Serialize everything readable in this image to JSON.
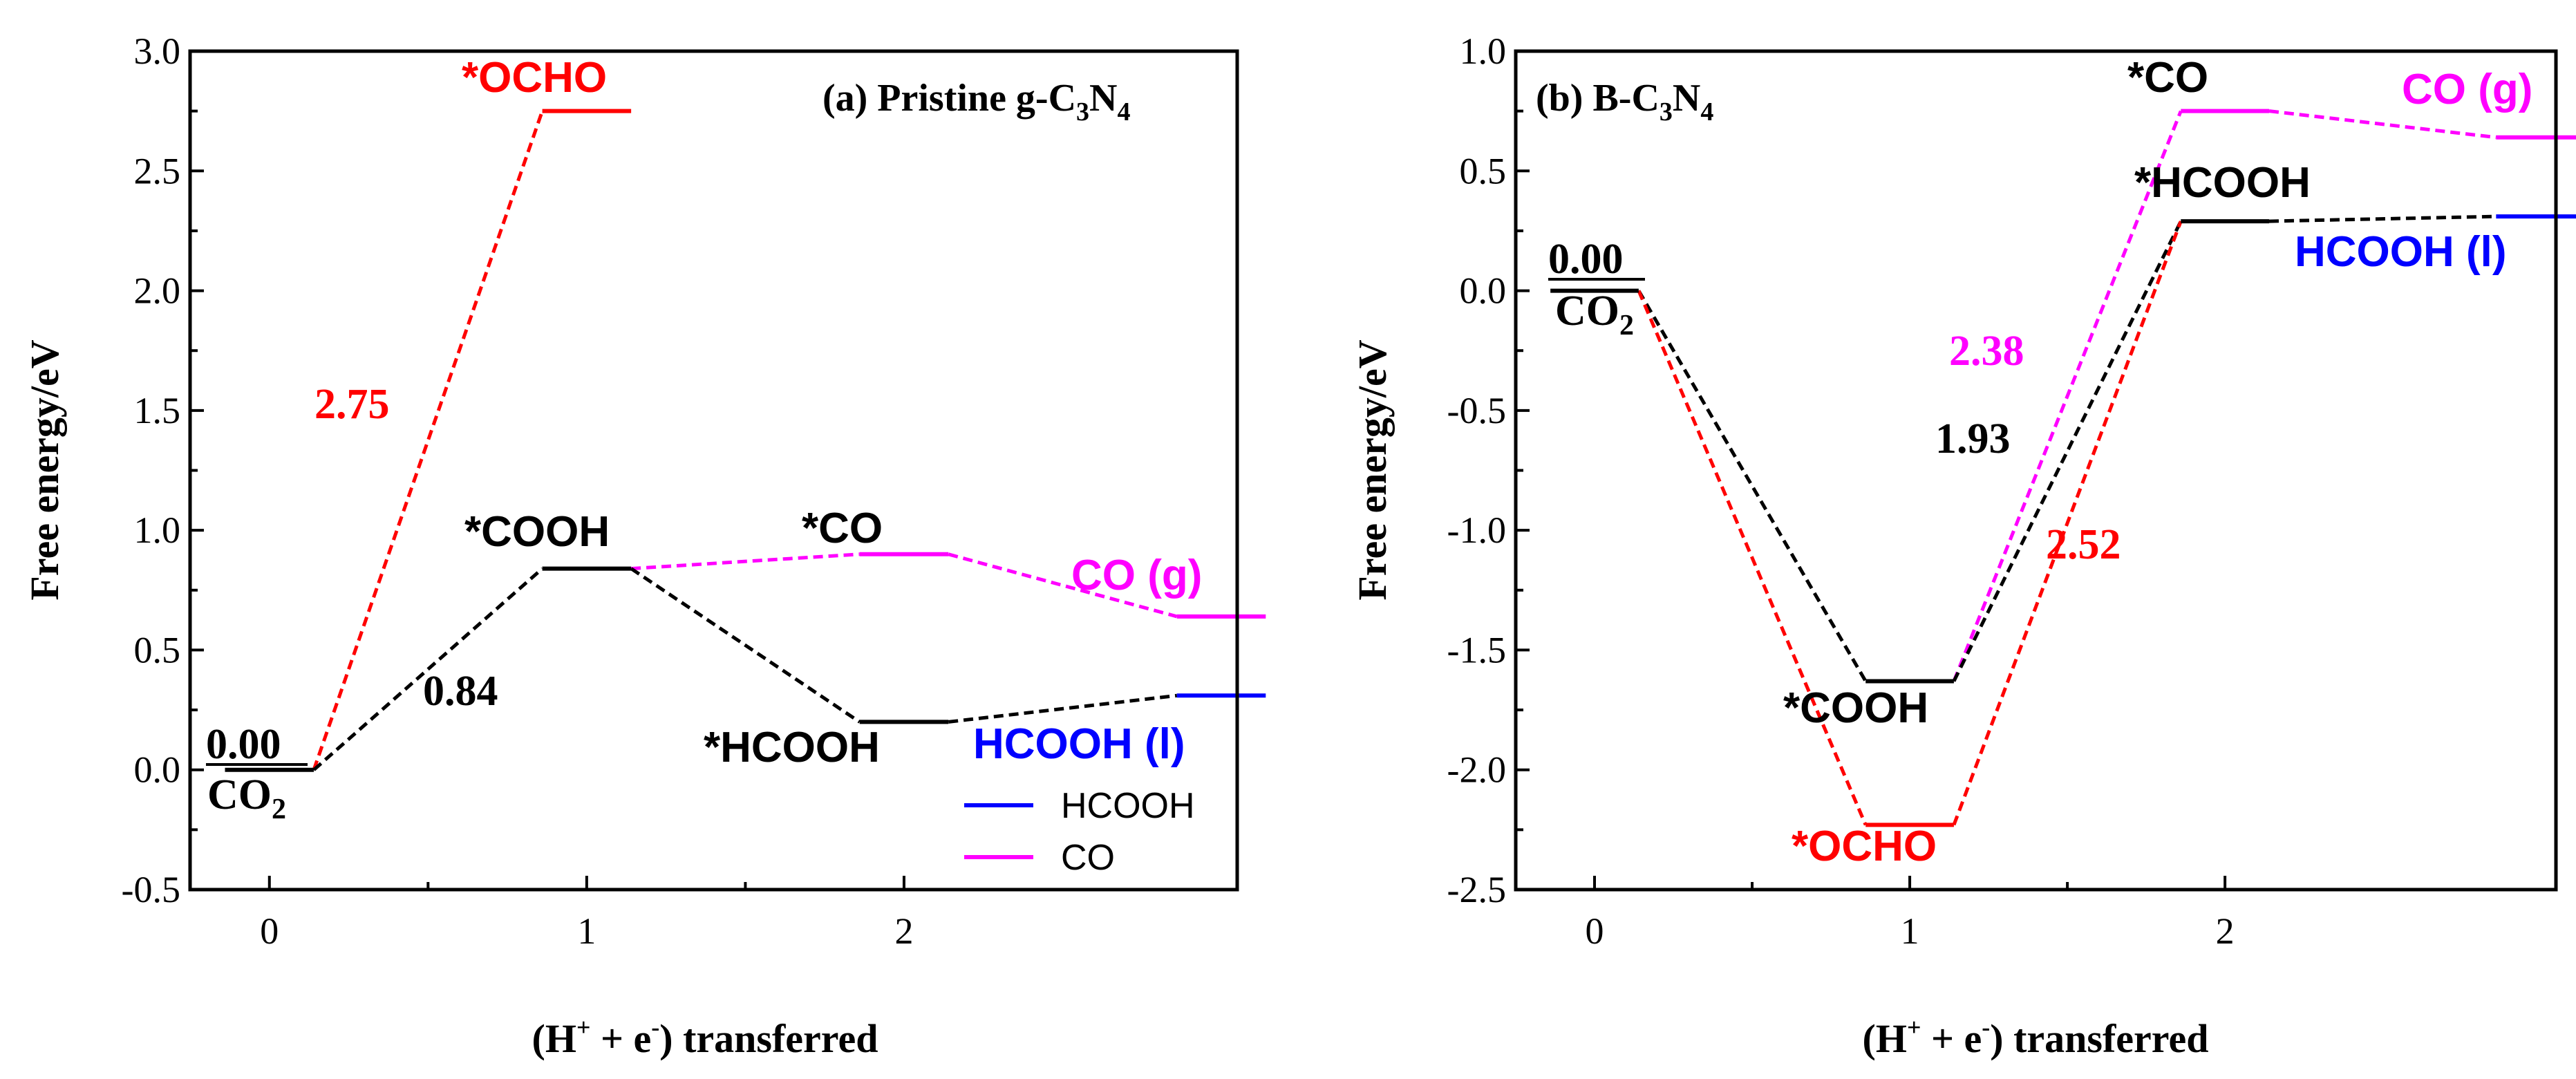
{
  "colors": {
    "black": "#000000",
    "red": "#ff0000",
    "magenta": "#ff00ff",
    "blue": "#0000ff"
  },
  "chart_data": [
    {
      "type": "line",
      "panel": "a",
      "title": {
        "prefix": "(a) Pristine g-C",
        "sub1": "3",
        "mid": "N",
        "sub2": "4"
      },
      "xlabel": {
        "open": "(H",
        "sup1": "+",
        "middle": " + e",
        "sup2": "-",
        "close": ") transferred"
      },
      "ylabel": "Free energy/eV",
      "ylim": [
        -0.5,
        3.0
      ],
      "yticks": [
        -0.5,
        0.0,
        0.5,
        1.0,
        1.5,
        2.0,
        2.5,
        3.0
      ],
      "yticklabels": [
        "-0.5",
        "0.0",
        "0.5",
        "1.0",
        "1.5",
        "2.0",
        "2.5",
        "3.0"
      ],
      "xlim": [
        -0.25,
        3.05
      ],
      "xticks": [
        0,
        1,
        2
      ],
      "xticklabels": [
        "0",
        "1",
        "2"
      ],
      "levels": [
        {
          "x": 0,
          "y": 0.0,
          "color": "black"
        },
        {
          "x": 1,
          "y": 2.75,
          "color": "red"
        },
        {
          "x": 1,
          "y": 0.84,
          "color": "black"
        },
        {
          "x": 2,
          "y": 0.9,
          "color": "magenta"
        },
        {
          "x": 2,
          "y": 0.2,
          "color": "black"
        },
        {
          "x": 3,
          "y": 0.64,
          "color": "magenta"
        },
        {
          "x": 3,
          "y": 0.31,
          "color": "blue"
        }
      ],
      "connectors": [
        {
          "from": [
            0,
            0.0
          ],
          "to": [
            1,
            2.75
          ],
          "color": "red"
        },
        {
          "from": [
            0,
            0.0
          ],
          "to": [
            1,
            0.84
          ],
          "color": "black"
        },
        {
          "from": [
            1,
            0.84
          ],
          "to": [
            2,
            0.9
          ],
          "color": "magenta"
        },
        {
          "from": [
            1,
            0.84
          ],
          "to": [
            2,
            0.2
          ],
          "color": "black"
        },
        {
          "from": [
            2,
            0.9
          ],
          "to": [
            3,
            0.64
          ],
          "color": "magenta"
        },
        {
          "from": [
            2,
            0.2
          ],
          "to": [
            3,
            0.31
          ],
          "color": "black"
        }
      ],
      "state_labels": {
        "zero": "0.00",
        "co2": "CO",
        "co2_sub": "2",
        "ocho": "*OCHO",
        "cooh": "*COOH",
        "co": "*CO",
        "hcooh": "*HCOOH",
        "co_g": "CO (g)",
        "hcooh_l": "HCOOH (l)"
      },
      "barriers": [
        {
          "text": "2.75",
          "color": "red"
        },
        {
          "text": "0.84",
          "color": "black"
        }
      ],
      "legend": {
        "placement": "bottom-right",
        "entries": [
          {
            "label": "HCOOH",
            "color": "blue"
          },
          {
            "label": "CO",
            "color": "magenta"
          }
        ]
      }
    },
    {
      "type": "line",
      "panel": "b",
      "title": {
        "prefix": "(b) B-C",
        "sub1": "3",
        "mid": "N",
        "sub2": "4"
      },
      "xlabel": {
        "open": "(H",
        "sup1": "+",
        "middle": " + e",
        "sup2": "-",
        "close": ") transferred"
      },
      "ylabel": "Free energy/eV",
      "ylim": [
        -2.5,
        1.0
      ],
      "yticks": [
        -2.5,
        -2.0,
        -1.5,
        -1.0,
        -0.5,
        0.0,
        0.5,
        1.0
      ],
      "yticklabels": [
        "-2.5",
        "-2.0",
        "-1.5",
        "-1.0",
        "-0.5",
        "0.0",
        "0.5",
        "1.0"
      ],
      "xlim": [
        -0.25,
        3.05
      ],
      "xticks": [
        0,
        1,
        2
      ],
      "xticklabels": [
        "0",
        "1",
        "2"
      ],
      "levels": [
        {
          "x": 0,
          "y": 0.0,
          "color": "black"
        },
        {
          "x": 1,
          "y": -1.63,
          "color": "black"
        },
        {
          "x": 1,
          "y": -2.23,
          "color": "red"
        },
        {
          "x": 2,
          "y": 0.75,
          "color": "magenta"
        },
        {
          "x": 2,
          "y": 0.29,
          "color": "black"
        },
        {
          "x": 3,
          "y": 0.64,
          "color": "magenta"
        },
        {
          "x": 3,
          "y": 0.31,
          "color": "blue"
        }
      ],
      "connectors": [
        {
          "from": [
            0,
            0.0
          ],
          "to": [
            1,
            -1.63
          ],
          "color": "black"
        },
        {
          "from": [
            0,
            0.0
          ],
          "to": [
            1,
            -2.23
          ],
          "color": "red"
        },
        {
          "from": [
            1,
            -1.63
          ],
          "to": [
            2,
            0.75
          ],
          "color": "magenta"
        },
        {
          "from": [
            1,
            -1.63
          ],
          "to": [
            2,
            0.29
          ],
          "color": "black"
        },
        {
          "from": [
            1,
            -2.23
          ],
          "to": [
            2,
            0.29
          ],
          "color": "red"
        },
        {
          "from": [
            2,
            0.75
          ],
          "to": [
            3,
            0.64
          ],
          "color": "magenta"
        },
        {
          "from": [
            2,
            0.29
          ],
          "to": [
            3,
            0.31
          ],
          "color": "black"
        }
      ],
      "state_labels": {
        "zero": "0.00",
        "co2": "CO",
        "co2_sub": "2",
        "cooh": "*COOH",
        "ocho": "*OCHO",
        "co": "*CO",
        "hcooh": "*HCOOH",
        "co_g": "CO (g)",
        "hcooh_l": "HCOOH (l)"
      },
      "barriers": [
        {
          "text": "2.38",
          "color": "magenta"
        },
        {
          "text": "1.93",
          "color": "black"
        },
        {
          "text": "2.52",
          "color": "red"
        }
      ]
    }
  ]
}
